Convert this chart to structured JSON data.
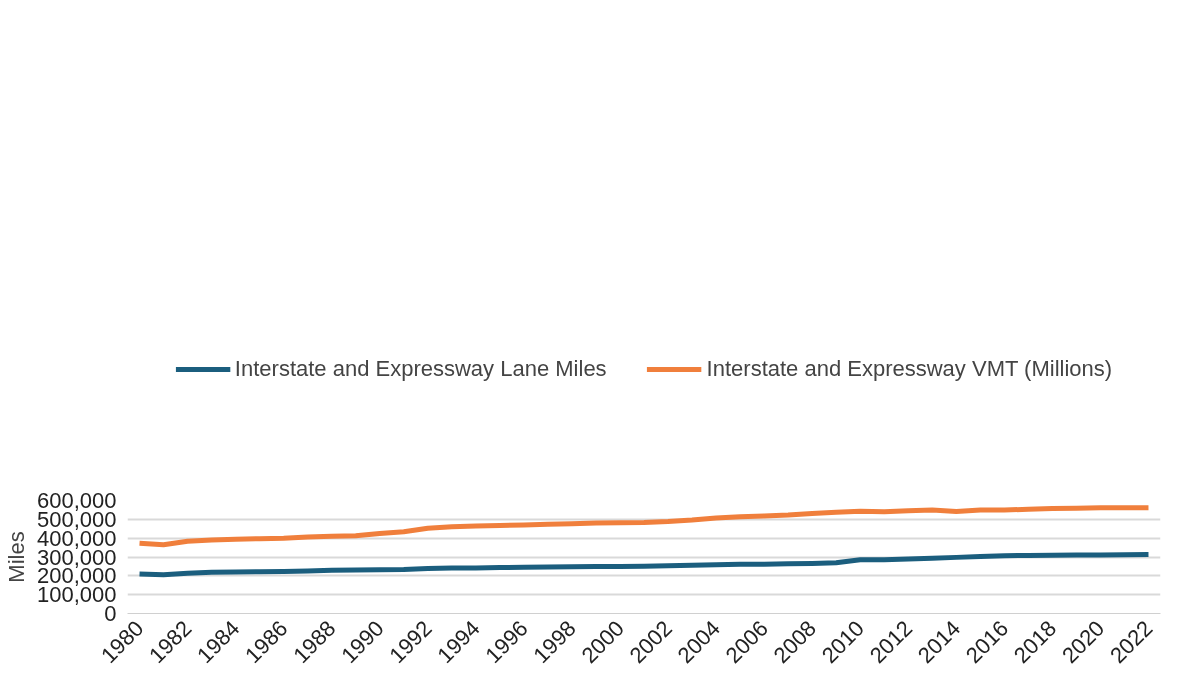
{
  "chart_data": {
    "type": "line",
    "ylabel": "Miles",
    "categories": [
      "1980",
      null,
      "1982",
      null,
      "1984",
      null,
      "1986",
      null,
      "1988",
      null,
      "1990",
      null,
      "1992",
      null,
      "1994",
      null,
      "1996",
      null,
      "1998",
      null,
      "2000",
      null,
      "2002",
      null,
      "2004",
      null,
      "2006",
      null,
      "2008",
      null,
      "2010",
      null,
      "2012",
      null,
      "2014",
      null,
      "2016",
      null,
      "2018",
      null,
      "2020",
      null,
      "2022"
    ],
    "series": [
      {
        "name": "Interstate and Expressway Lane Miles",
        "color": "#1b5e7e",
        "values": [
          210000,
          206000,
          214000,
          219000,
          220000,
          222000,
          223000,
          226000,
          229000,
          231000,
          232000,
          234000,
          239000,
          241000,
          242000,
          244000,
          246000,
          247000,
          248000,
          249000,
          250000,
          251000,
          253000,
          256000,
          259000,
          261000,
          262000,
          264000,
          266000,
          270000,
          285000,
          286000,
          289000,
          293000,
          298000,
          303000,
          307000,
          308000,
          309000,
          310000,
          310000,
          312000,
          313000
        ]
      },
      {
        "name": "Interstate and Expressway VMT (Millions)",
        "color": "#f07f3c",
        "values": [
          373000,
          365000,
          384000,
          390000,
          394000,
          397000,
          400000,
          406000,
          410000,
          413000,
          425000,
          434000,
          453000,
          460000,
          464000,
          467000,
          470000,
          474000,
          477000,
          480000,
          482000,
          483000,
          488000,
          496000,
          507000,
          514000,
          518000,
          523000,
          531000,
          537000,
          543000,
          540000,
          545000,
          549000,
          542000,
          549000,
          550000,
          553000,
          558000,
          559000,
          561000,
          561000,
          562000
        ]
      }
    ],
    "ylim": [
      0,
      600000
    ],
    "yticks": [
      {
        "value": 0,
        "label": "0"
      },
      {
        "value": 100000,
        "label": "100,000"
      },
      {
        "value": 200000,
        "label": "200,000"
      },
      {
        "value": 300000,
        "label": "300,000"
      },
      {
        "value": 400000,
        "label": "400,000"
      },
      {
        "value": 500000,
        "label": "500,000"
      },
      {
        "value": 600000,
        "label": "600,000"
      }
    ],
    "grid": "y",
    "legend": "top",
    "marker": "none",
    "line_style": "solid"
  }
}
